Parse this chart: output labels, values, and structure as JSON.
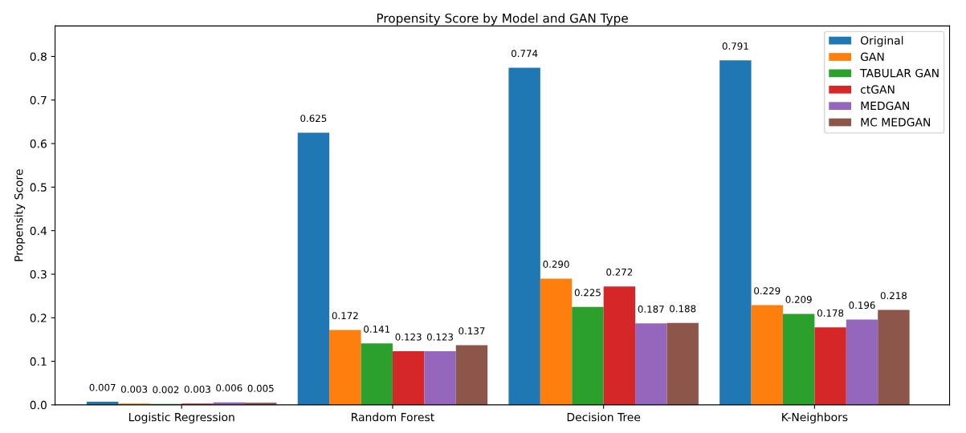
{
  "chart_data": {
    "type": "bar",
    "title": "Propensity Score by Model and GAN Type",
    "ylabel": "Propensity Score",
    "categories": [
      "Logistic Regression",
      "Random Forest",
      "Decision Tree",
      "K-Neighbors"
    ],
    "series": [
      {
        "name": "Original",
        "color": "#1f77b4",
        "values": [
          0.007,
          0.625,
          0.774,
          0.791
        ],
        "value_labels": [
          "0.007",
          "0.625",
          "0.774",
          "0.791"
        ]
      },
      {
        "name": "GAN",
        "color": "#ff7f0e",
        "values": [
          0.003,
          0.172,
          0.29,
          0.229
        ],
        "value_labels": [
          "0.003",
          "0.172",
          "0.290",
          "0.229"
        ]
      },
      {
        "name": "TABULAR GAN",
        "color": "#2ca02c",
        "values": [
          0.002,
          0.141,
          0.225,
          0.209
        ],
        "value_labels": [
          "0.002",
          "0.141",
          "0.225",
          "0.209"
        ]
      },
      {
        "name": "ctGAN",
        "color": "#d62728",
        "values": [
          0.003,
          0.123,
          0.272,
          0.178
        ],
        "value_labels": [
          "0.003",
          "0.123",
          "0.272",
          "0.178"
        ]
      },
      {
        "name": "MEDGAN",
        "color": "#9467bd",
        "values": [
          0.006,
          0.123,
          0.187,
          0.196
        ],
        "value_labels": [
          "0.006",
          "0.123",
          "0.187",
          "0.196"
        ]
      },
      {
        "name": "MC MEDGAN",
        "color": "#8c564b",
        "values": [
          0.005,
          0.137,
          0.188,
          0.218
        ],
        "value_labels": [
          "0.005",
          "0.137",
          "0.188",
          "0.218"
        ]
      }
    ],
    "ylim": [
      0,
      0.87
    ],
    "yticks": [
      {
        "value": 0,
        "label": "0.0"
      },
      0.1,
      0.2,
      0.3,
      0.4,
      0.5,
      0.6,
      0.7,
      0.8
    ],
    "grid": false,
    "legend": "top right"
  }
}
